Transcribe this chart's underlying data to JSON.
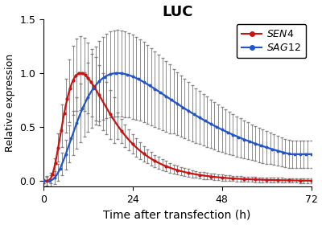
{
  "title": "LUC",
  "xlabel": "Time after transfection (h)",
  "ylabel": "Relative expression",
  "xlim": [
    0,
    72
  ],
  "ylim": [
    -0.05,
    1.5
  ],
  "xticks": [
    0,
    24,
    48,
    72
  ],
  "yticks": [
    0.0,
    0.5,
    1.0,
    1.5
  ],
  "sen4_color": "#cc1111",
  "sag12_color": "#2255cc",
  "error_color": "#666666",
  "background_color": "#ffffff",
  "sen4_label": "SEN4",
  "sag12_label": "SAG12",
  "title_fontsize": 13,
  "axis_fontsize": 10,
  "ylabel_fontsize": 9,
  "tick_fontsize": 9,
  "legend_fontsize": 9
}
